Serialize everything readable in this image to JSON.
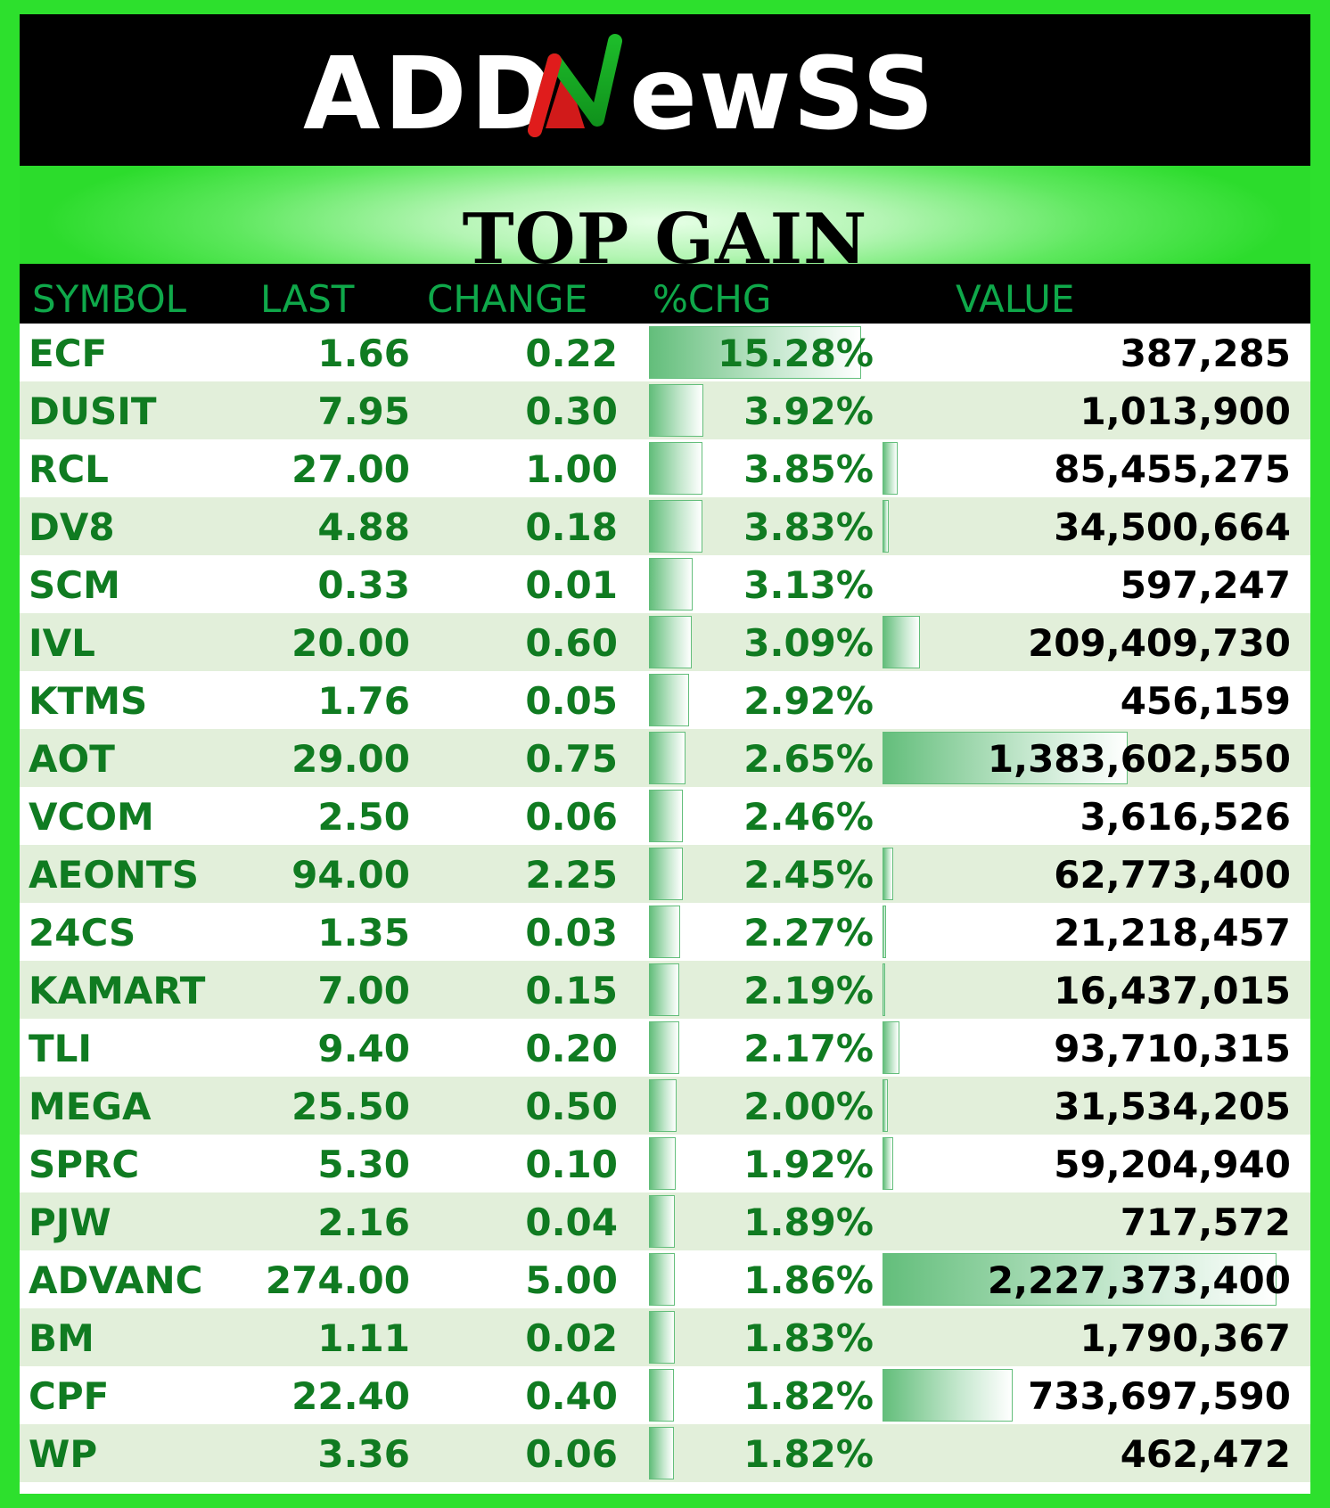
{
  "brand": {
    "logo_text": "ADDNewSS",
    "colors": {
      "background": "#2de02d",
      "logo_band": "#000000",
      "header_text": "#0fa84a",
      "row_text": "#107b21",
      "row_alt": "#e2efda",
      "bar": "#63be7b"
    }
  },
  "title": "TOP GAIN",
  "columns": [
    "SYMBOL",
    "LAST",
    "CHANGE",
    "%CHG",
    "VALUE"
  ],
  "rows": [
    {
      "symbol": "ECF",
      "last": "1.66",
      "change": "0.22",
      "pct": "15.28%",
      "value": "387,285",
      "pct_num": 15.28,
      "value_num": 387285
    },
    {
      "symbol": "DUSIT",
      "last": "7.95",
      "change": "0.30",
      "pct": "3.92%",
      "value": "1,013,900",
      "pct_num": 3.92,
      "value_num": 1013900
    },
    {
      "symbol": "RCL",
      "last": "27.00",
      "change": "1.00",
      "pct": "3.85%",
      "value": "85,455,275",
      "pct_num": 3.85,
      "value_num": 85455275
    },
    {
      "symbol": "DV8",
      "last": "4.88",
      "change": "0.18",
      "pct": "3.83%",
      "value": "34,500,664",
      "pct_num": 3.83,
      "value_num": 34500664
    },
    {
      "symbol": "SCM",
      "last": "0.33",
      "change": "0.01",
      "pct": "3.13%",
      "value": "597,247",
      "pct_num": 3.13,
      "value_num": 597247
    },
    {
      "symbol": "IVL",
      "last": "20.00",
      "change": "0.60",
      "pct": "3.09%",
      "value": "209,409,730",
      "pct_num": 3.09,
      "value_num": 209409730
    },
    {
      "symbol": "KTMS",
      "last": "1.76",
      "change": "0.05",
      "pct": "2.92%",
      "value": "456,159",
      "pct_num": 2.92,
      "value_num": 456159
    },
    {
      "symbol": "AOT",
      "last": "29.00",
      "change": "0.75",
      "pct": "2.65%",
      "value": "1,383,602,550",
      "pct_num": 2.65,
      "value_num": 1383602550
    },
    {
      "symbol": "VCOM",
      "last": "2.50",
      "change": "0.06",
      "pct": "2.46%",
      "value": "3,616,526",
      "pct_num": 2.46,
      "value_num": 3616526
    },
    {
      "symbol": "AEONTS",
      "last": "94.00",
      "change": "2.25",
      "pct": "2.45%",
      "value": "62,773,400",
      "pct_num": 2.45,
      "value_num": 62773400
    },
    {
      "symbol": "24CS",
      "last": "1.35",
      "change": "0.03",
      "pct": "2.27%",
      "value": "21,218,457",
      "pct_num": 2.27,
      "value_num": 21218457
    },
    {
      "symbol": "KAMART",
      "last": "7.00",
      "change": "0.15",
      "pct": "2.19%",
      "value": "16,437,015",
      "pct_num": 2.19,
      "value_num": 16437015
    },
    {
      "symbol": "TLI",
      "last": "9.40",
      "change": "0.20",
      "pct": "2.17%",
      "value": "93,710,315",
      "pct_num": 2.17,
      "value_num": 93710315
    },
    {
      "symbol": "MEGA",
      "last": "25.50",
      "change": "0.50",
      "pct": "2.00%",
      "value": "31,534,205",
      "pct_num": 2.0,
      "value_num": 31534205
    },
    {
      "symbol": "SPRC",
      "last": "5.30",
      "change": "0.10",
      "pct": "1.92%",
      "value": "59,204,940",
      "pct_num": 1.92,
      "value_num": 59204940
    },
    {
      "symbol": "PJW",
      "last": "2.16",
      "change": "0.04",
      "pct": "1.89%",
      "value": "717,572",
      "pct_num": 1.89,
      "value_num": 717572
    },
    {
      "symbol": "ADVANC",
      "last": "274.00",
      "change": "5.00",
      "pct": "1.86%",
      "value": "2,227,373,400",
      "pct_num": 1.86,
      "value_num": 2227373400
    },
    {
      "symbol": "BM",
      "last": "1.11",
      "change": "0.02",
      "pct": "1.83%",
      "value": "1,790,367",
      "pct_num": 1.83,
      "value_num": 1790367
    },
    {
      "symbol": "CPF",
      "last": "22.40",
      "change": "0.40",
      "pct": "1.82%",
      "value": "733,697,590",
      "pct_num": 1.82,
      "value_num": 733697590
    },
    {
      "symbol": "WP",
      "last": "3.36",
      "change": "0.06",
      "pct": "1.82%",
      "value": "462,472",
      "pct_num": 1.82,
      "value_num": 462472
    }
  ]
}
